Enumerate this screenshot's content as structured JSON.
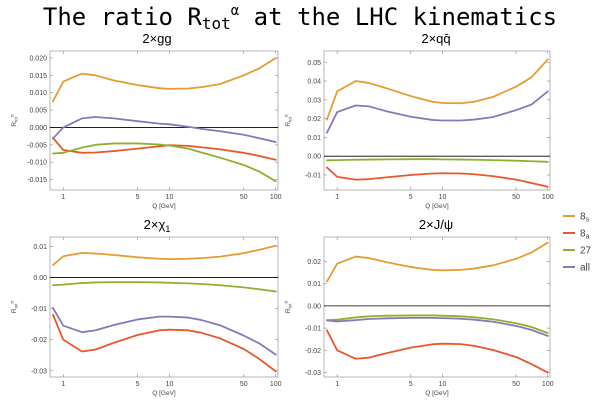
{
  "figure": {
    "title_prefix": "The ratio R",
    "title_sub": "tot",
    "title_sup": "α",
    "title_suffix": " at the LHC kinematics"
  },
  "legend": {
    "entries": [
      {
        "label": "8",
        "sub": "s",
        "color": "#E69B33"
      },
      {
        "label": "8",
        "sub": "a",
        "color": "#E8582B"
      },
      {
        "label": "27",
        "sub": "",
        "color": "#8DB12F"
      },
      {
        "label": "all",
        "sub": "",
        "color": "#8A78B6"
      }
    ]
  },
  "chart_data": [
    {
      "type": "line",
      "title": "2×gg",
      "xlabel": "Q [GeV]",
      "ylabel_base": "R",
      "ylabel_sub": "tot",
      "ylabel_sup": "α",
      "xscale": "log",
      "xlim": [
        0.75,
        105
      ],
      "ylim": [
        -0.018,
        0.022
      ],
      "x_ticks": [
        1,
        5,
        10,
        50,
        100
      ],
      "y_ticks": [
        -0.015,
        -0.01,
        -0.005,
        0.0,
        0.005,
        0.01,
        0.015,
        0.02
      ],
      "y_tick_labels": [
        "-0.015",
        "-0.010",
        "-0.005",
        "0.000",
        "0.005",
        "0.010",
        "0.015",
        "0.020"
      ],
      "x": [
        0.8,
        1,
        1.5,
        2,
        3,
        5,
        8,
        10,
        15,
        20,
        30,
        50,
        70,
        100
      ],
      "series": [
        {
          "color": "#E69B33",
          "values": [
            0.0075,
            0.0132,
            0.0155,
            0.015,
            0.0135,
            0.0122,
            0.0113,
            0.0111,
            0.0112,
            0.0116,
            0.0125,
            0.015,
            0.017,
            0.02
          ]
        },
        {
          "color": "#E8582B",
          "values": [
            -0.003,
            -0.0065,
            -0.0073,
            -0.0072,
            -0.0068,
            -0.0061,
            -0.0054,
            -0.0051,
            -0.0053,
            -0.0057,
            -0.0063,
            -0.0073,
            -0.0082,
            -0.0093
          ]
        },
        {
          "color": "#8DB12F",
          "values": [
            -0.0075,
            -0.0073,
            -0.0058,
            -0.005,
            -0.0046,
            -0.0046,
            -0.0049,
            -0.0052,
            -0.0061,
            -0.0072,
            -0.0087,
            -0.0108,
            -0.0127,
            -0.0155
          ]
        },
        {
          "color": "#8A78B6",
          "values": [
            -0.0032,
            0.0,
            0.0026,
            0.003,
            0.0026,
            0.0018,
            0.0011,
            0.0009,
            0.0002,
            -0.0004,
            -0.0011,
            -0.0021,
            -0.0031,
            -0.0042
          ]
        }
      ]
    },
    {
      "type": "line",
      "title": "2×qq̄",
      "xlabel": "Q [GeV]",
      "ylabel_base": "R",
      "ylabel_sub": "tot",
      "ylabel_sup": "α",
      "xscale": "log",
      "xlim": [
        0.75,
        105
      ],
      "ylim": [
        -0.018,
        0.056
      ],
      "x_ticks": [
        1,
        5,
        10,
        50,
        100
      ],
      "y_ticks": [
        -0.01,
        0.0,
        0.01,
        0.02,
        0.03,
        0.04,
        0.05
      ],
      "y_tick_labels": [
        "-0.01",
        "0.00",
        "0.01",
        "0.02",
        "0.03",
        "0.04",
        "0.05"
      ],
      "x": [
        0.8,
        1,
        1.5,
        2,
        3,
        5,
        8,
        10,
        15,
        20,
        30,
        50,
        70,
        100
      ],
      "series": [
        {
          "color": "#E69B33",
          "values": [
            0.0195,
            0.0345,
            0.04,
            0.039,
            0.036,
            0.032,
            0.029,
            0.0283,
            0.0282,
            0.029,
            0.0315,
            0.037,
            0.042,
            0.0515
          ]
        },
        {
          "color": "#E8582B",
          "values": [
            -0.006,
            -0.011,
            -0.0125,
            -0.0122,
            -0.0112,
            -0.01,
            -0.0092,
            -0.0091,
            -0.0092,
            -0.0096,
            -0.0106,
            -0.0125,
            -0.0143,
            -0.0163
          ]
        },
        {
          "color": "#8DB12F",
          "values": [
            -0.0022,
            -0.0021,
            -0.0019,
            -0.0018,
            -0.0017,
            -0.0016,
            -0.0016,
            -0.0017,
            -0.0018,
            -0.0019,
            -0.0021,
            -0.0024,
            -0.0027,
            -0.003
          ]
        },
        {
          "color": "#8A78B6",
          "values": [
            0.0125,
            0.0235,
            0.027,
            0.0265,
            0.0238,
            0.021,
            0.0193,
            0.019,
            0.019,
            0.0195,
            0.0208,
            0.0245,
            0.0275,
            0.0345
          ]
        }
      ]
    },
    {
      "type": "line",
      "title_base": "2×χ",
      "title_sub": "1",
      "xlabel": "Q [GeV]",
      "ylabel_base": "R",
      "ylabel_sub": "tot",
      "ylabel_sup": "α",
      "xscale": "log",
      "xlim": [
        0.75,
        105
      ],
      "ylim": [
        -0.032,
        0.013
      ],
      "x_ticks": [
        1,
        5,
        10,
        50,
        100
      ],
      "y_ticks": [
        -0.03,
        -0.02,
        -0.01,
        0.0,
        0.01
      ],
      "y_tick_labels": [
        "-0.03",
        "-0.02",
        "-0.01",
        "0.00",
        "0.01"
      ],
      "x": [
        0.8,
        1,
        1.5,
        2,
        3,
        5,
        8,
        10,
        15,
        20,
        30,
        50,
        70,
        100
      ],
      "series": [
        {
          "color": "#E69B33",
          "values": [
            0.004,
            0.0068,
            0.0079,
            0.0077,
            0.0072,
            0.0065,
            0.006,
            0.0059,
            0.006,
            0.0062,
            0.0067,
            0.0078,
            0.0089,
            0.0102
          ]
        },
        {
          "color": "#E8582B",
          "values": [
            -0.012,
            -0.02,
            -0.0238,
            -0.0232,
            -0.021,
            -0.0185,
            -0.017,
            -0.0168,
            -0.017,
            -0.0178,
            -0.0196,
            -0.023,
            -0.0262,
            -0.0302
          ]
        },
        {
          "color": "#8DB12F",
          "values": [
            -0.0025,
            -0.0023,
            -0.0018,
            -0.0016,
            -0.0015,
            -0.0015,
            -0.0016,
            -0.0017,
            -0.0019,
            -0.0021,
            -0.0025,
            -0.0032,
            -0.0038,
            -0.0045
          ]
        },
        {
          "color": "#8A78B6",
          "values": [
            -0.0098,
            -0.0155,
            -0.0176,
            -0.017,
            -0.0153,
            -0.0135,
            -0.0126,
            -0.0126,
            -0.0129,
            -0.0137,
            -0.0154,
            -0.0187,
            -0.0212,
            -0.0248
          ]
        }
      ]
    },
    {
      "type": "line",
      "title_base": "2×J/ψ",
      "title_sub": "",
      "xlabel": "Q [GeV]",
      "ylabel_base": "R",
      "ylabel_sub": "tot",
      "ylabel_sup": "α",
      "xscale": "log",
      "xlim": [
        0.75,
        105
      ],
      "ylim": [
        -0.032,
        0.031
      ],
      "x_ticks": [
        1,
        5,
        10,
        50,
        100
      ],
      "y_ticks": [
        -0.03,
        -0.02,
        -0.01,
        0.0,
        0.01,
        0.02
      ],
      "y_tick_labels": [
        "-0.03",
        "-0.02",
        "-0.01",
        "0.00",
        "0.01",
        "0.02"
      ],
      "x": [
        0.8,
        1,
        1.5,
        2,
        3,
        5,
        8,
        10,
        15,
        20,
        30,
        50,
        70,
        100
      ],
      "series": [
        {
          "color": "#E69B33",
          "values": [
            0.011,
            0.019,
            0.0222,
            0.0215,
            0.0196,
            0.0175,
            0.0162,
            0.016,
            0.0162,
            0.0168,
            0.0182,
            0.0212,
            0.024,
            0.0285
          ]
        },
        {
          "color": "#E8582B",
          "values": [
            -0.011,
            -0.02,
            -0.0238,
            -0.0233,
            -0.0212,
            -0.0188,
            -0.0173,
            -0.017,
            -0.0172,
            -0.018,
            -0.0198,
            -0.023,
            -0.0262,
            -0.03
          ]
        },
        {
          "color": "#8DB12F",
          "values": [
            -0.0065,
            -0.0062,
            -0.0052,
            -0.0047,
            -0.0044,
            -0.0043,
            -0.0043,
            -0.0044,
            -0.0047,
            -0.0051,
            -0.006,
            -0.0078,
            -0.0095,
            -0.0122
          ]
        },
        {
          "color": "#8A78B6",
          "values": [
            -0.0065,
            -0.007,
            -0.0064,
            -0.0059,
            -0.0056,
            -0.0054,
            -0.0054,
            -0.0055,
            -0.0058,
            -0.0062,
            -0.0071,
            -0.009,
            -0.0108,
            -0.0135
          ]
        }
      ]
    }
  ]
}
